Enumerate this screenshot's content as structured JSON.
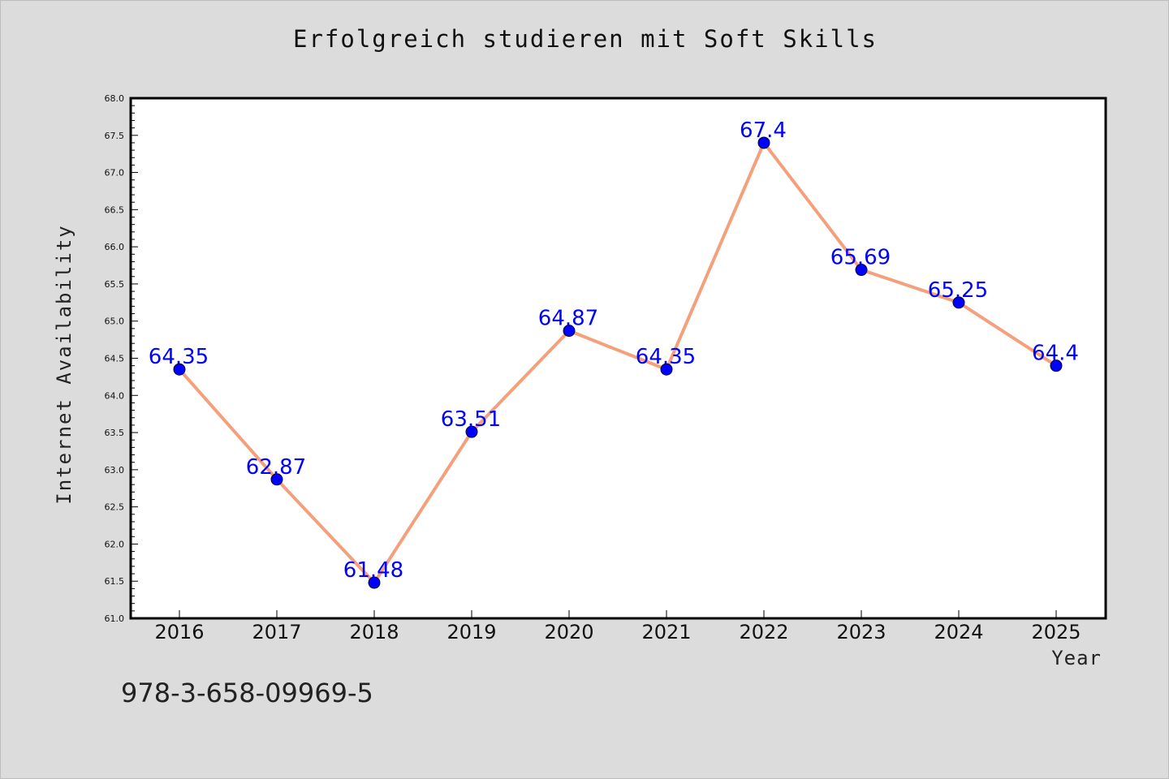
{
  "chart_data": {
    "type": "line",
    "title": "Erfolgreich studieren mit Soft Skills",
    "xlabel": "Year",
    "ylabel": "Internet Availability",
    "categories": [
      "2016",
      "2017",
      "2018",
      "2019",
      "2020",
      "2021",
      "2022",
      "2023",
      "2024",
      "2025"
    ],
    "values": [
      64.35,
      62.87,
      61.48,
      63.51,
      64.87,
      64.35,
      67.4,
      65.69,
      65.25,
      64.4
    ],
    "data_labels": [
      "64.35",
      "62.87",
      "61.48",
      "63.51",
      "64.87",
      "64.35",
      "67.4",
      "65.69",
      "65.25",
      "64.4"
    ],
    "ylim": [
      61.0,
      68.0
    ],
    "yticks": [
      "61.0",
      "61.5",
      "62.0",
      "62.5",
      "63.0",
      "63.5",
      "64.0",
      "64.5",
      "65.0",
      "65.5",
      "66.0",
      "66.5",
      "67.0",
      "67.5",
      "68.0"
    ],
    "grid": false,
    "line_color": "#f4a07c",
    "marker_color": "#0000ff",
    "label_color": "#0000ff",
    "background_color": "#dcdcdc",
    "plot_background": "#ffffff"
  },
  "footer": {
    "isbn": "978-3-658-09969-5"
  }
}
